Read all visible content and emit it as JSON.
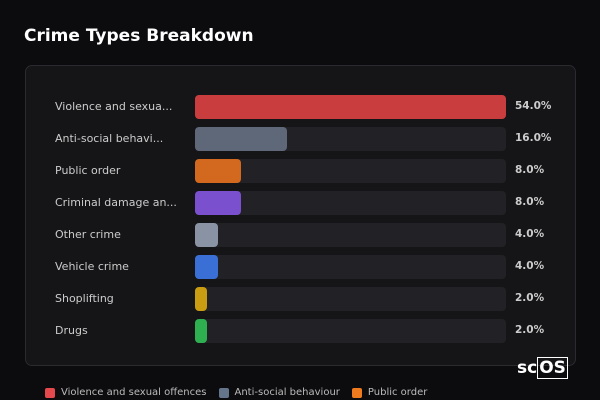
{
  "chart_data": {
    "type": "bar",
    "orientation": "horizontal",
    "title": "Crime Types Breakdown",
    "categories": [
      "Violence and sexual offences",
      "Anti-social behaviour",
      "Public order",
      "Criminal damage and arson",
      "Other crime",
      "Vehicle crime",
      "Shoplifting",
      "Drugs"
    ],
    "display_labels": [
      "Violence and sexua...",
      "Anti-social behavi...",
      "Public order",
      "Criminal damage an...",
      "Other crime",
      "Vehicle crime",
      "Shoplifting",
      "Drugs"
    ],
    "values": [
      54.0,
      16.0,
      8.0,
      8.0,
      4.0,
      4.0,
      2.0,
      2.0
    ],
    "value_labels": [
      "54.0%",
      "16.0%",
      "8.0%",
      "8.0%",
      "4.0%",
      "4.0%",
      "2.0%",
      "2.0%"
    ],
    "colors": [
      "#c93d3f",
      "#5e6879",
      "#d2691e",
      "#7a50cf",
      "#8a93a3",
      "#3a70d6",
      "#c99c12",
      "#2fb050"
    ],
    "xlim": [
      0,
      54
    ],
    "grid": false,
    "legend": {
      "position": "bottom",
      "entries": [
        {
          "label": "Violence and sexual offences",
          "color": "#e5484d"
        },
        {
          "label": "Anti-social behaviour",
          "color": "#64748b"
        },
        {
          "label": "Public order",
          "color": "#f07b1f"
        }
      ]
    }
  },
  "logo": {
    "text": "scOS",
    "prefix": "sc",
    "boxed": "OS"
  }
}
